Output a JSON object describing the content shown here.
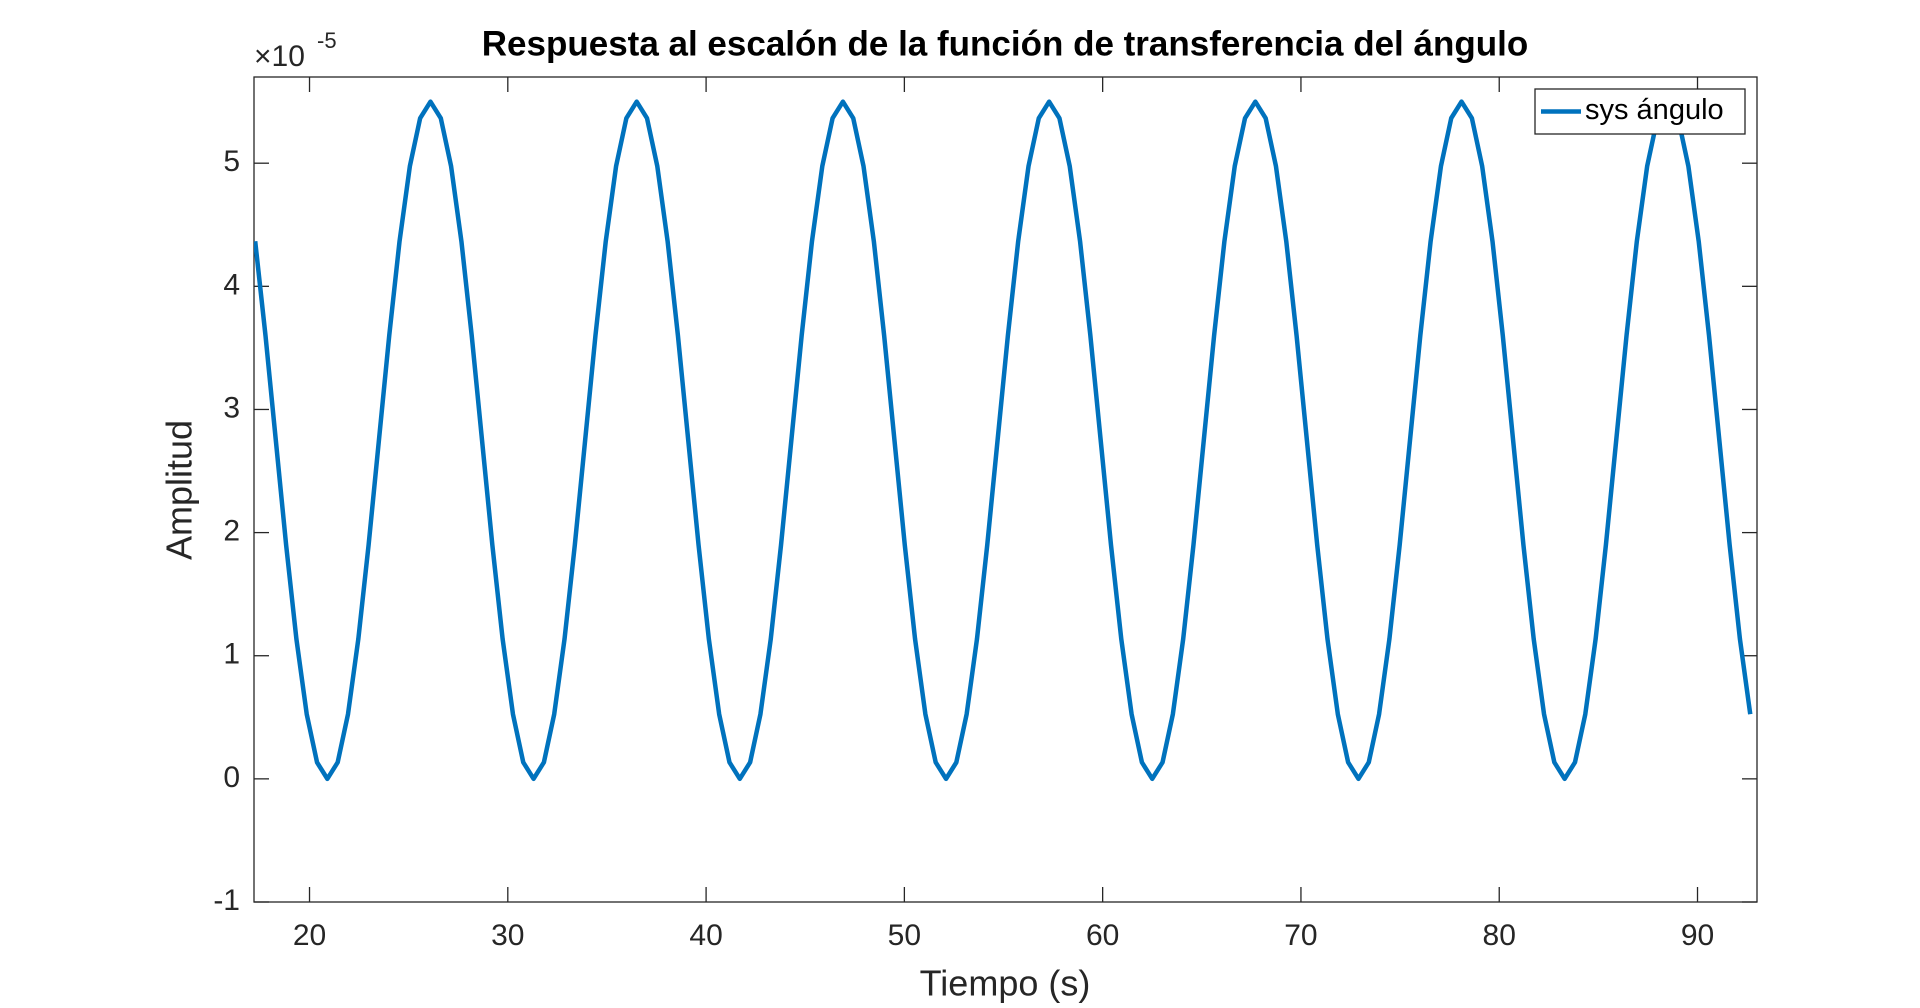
{
  "chart_data": {
    "type": "line",
    "title": "Respuesta al escalón de la función de transferencia del ángulo",
    "xlabel": "Tiempo (s)",
    "ylabel": "Amplitud",
    "y_multiplier": "×10",
    "y_exponent": "-5",
    "x": [
      17.26,
      17.78,
      18.3,
      18.82,
      19.34,
      19.86,
      20.38,
      20.9,
      21.42,
      21.94,
      22.46,
      22.98,
      23.5,
      24.02,
      24.54,
      25.06,
      25.58,
      26.1,
      26.62,
      27.14,
      27.66,
      28.18,
      28.7,
      29.22,
      29.74,
      30.26,
      30.78,
      31.3,
      31.82,
      32.34,
      32.86,
      33.38,
      33.9,
      34.42,
      34.94,
      35.46,
      35.98,
      36.5,
      37.02,
      37.54,
      38.06,
      38.58,
      39.1,
      39.62,
      40.14,
      40.66,
      41.18,
      41.7,
      42.22,
      42.74,
      43.26,
      43.78,
      44.3,
      44.82,
      45.34,
      45.86,
      46.38,
      46.9,
      47.42,
      47.94,
      48.46,
      48.98,
      49.5,
      50.02,
      50.54,
      51.06,
      51.58,
      52.1,
      52.62,
      53.14,
      53.66,
      54.18,
      54.7,
      55.22,
      55.74,
      56.26,
      56.78,
      57.3,
      57.82,
      58.34,
      58.86,
      59.38,
      59.9,
      60.42,
      60.94,
      61.46,
      61.98,
      62.5,
      63.02,
      63.54,
      64.06,
      64.58,
      65.1,
      65.62,
      66.14,
      66.66,
      67.18,
      67.7,
      68.22,
      68.74,
      69.26,
      69.78,
      70.3,
      70.82,
      71.34,
      71.86,
      72.38,
      72.9,
      73.42,
      73.94,
      74.46,
      74.98,
      75.5,
      76.02,
      76.54,
      77.06,
      77.58,
      78.1,
      78.62,
      79.14,
      79.66,
      80.18,
      80.7,
      81.22,
      81.74,
      82.26,
      82.78,
      83.3,
      83.82,
      84.34,
      84.86,
      85.38,
      85.9,
      86.42,
      86.94,
      87.46,
      87.98,
      88.5,
      89.02,
      89.54,
      90.06,
      90.58,
      91.1,
      91.62,
      92.14,
      92.66
    ],
    "series": [
      {
        "name": "sys ángulo",
        "color": "#0072BD",
        "values": [
          4.366,
          3.6,
          2.75,
          1.9,
          1.134,
          0.525,
          0.134,
          0,
          0.134,
          0.525,
          1.134,
          1.9,
          2.75,
          3.6,
          4.366,
          4.975,
          5.366,
          5.5,
          5.366,
          4.975,
          4.366,
          3.6,
          2.75,
          1.9,
          1.134,
          0.525,
          0.134,
          0,
          0.134,
          0.525,
          1.134,
          1.9,
          2.75,
          3.6,
          4.366,
          4.975,
          5.366,
          5.5,
          5.366,
          4.975,
          4.366,
          3.6,
          2.75,
          1.9,
          1.134,
          0.525,
          0.134,
          0,
          0.134,
          0.525,
          1.134,
          1.9,
          2.75,
          3.6,
          4.366,
          4.975,
          5.366,
          5.5,
          5.366,
          4.975,
          4.366,
          3.6,
          2.75,
          1.9,
          1.134,
          0.525,
          0.134,
          0,
          0.134,
          0.525,
          1.134,
          1.9,
          2.75,
          3.6,
          4.366,
          4.975,
          5.366,
          5.5,
          5.366,
          4.975,
          4.366,
          3.6,
          2.75,
          1.9,
          1.134,
          0.525,
          0.134,
          0,
          0.134,
          0.525,
          1.134,
          1.9,
          2.75,
          3.6,
          4.366,
          4.975,
          5.366,
          5.5,
          5.366,
          4.975,
          4.366,
          3.6,
          2.75,
          1.9,
          1.134,
          0.525,
          0.134,
          0,
          0.134,
          0.525,
          1.134,
          1.9,
          2.75,
          3.6,
          4.366,
          4.975,
          5.366,
          5.5,
          5.366,
          4.975,
          4.366,
          3.6,
          2.75,
          1.9,
          1.134,
          0.525,
          0.134,
          0,
          0.134,
          0.525,
          1.134,
          1.9,
          2.75,
          3.6,
          4.366,
          4.975,
          5.366,
          5.5,
          5.366,
          4.975,
          4.366,
          3.6,
          2.75,
          1.9,
          1.134,
          0.525
        ]
      }
    ],
    "xlim": [
      17.2,
      93
    ],
    "xticks": [
      20,
      30,
      40,
      50,
      60,
      70,
      80,
      90
    ],
    "ylim": [
      -1,
      5.7
    ],
    "yticks": [
      -1,
      0,
      1,
      2,
      3,
      4,
      5
    ],
    "grid": false,
    "legend": "northeast"
  }
}
